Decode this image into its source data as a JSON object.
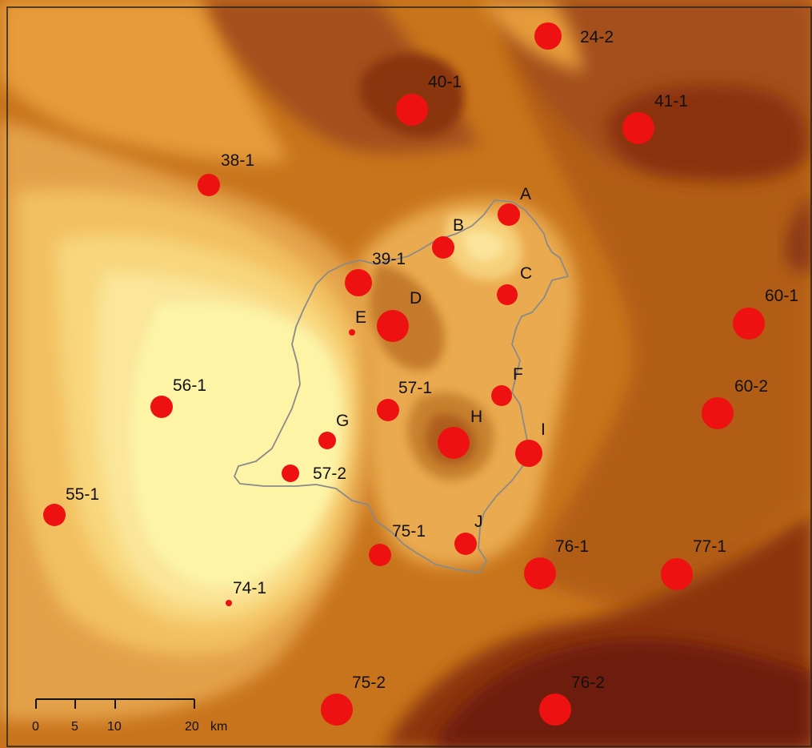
{
  "map": {
    "colors": {
      "background_light": "#fdf4a6",
      "marker": "#ee1111",
      "boundary": "#8a8a8a",
      "text": "#111111"
    },
    "stations": [
      {
        "id": "24-2"
      },
      {
        "id": "40-1"
      },
      {
        "id": "41-1"
      },
      {
        "id": "38-1"
      },
      {
        "id": "A"
      },
      {
        "id": "B"
      },
      {
        "id": "39-1"
      },
      {
        "id": "C"
      },
      {
        "id": "D"
      },
      {
        "id": "E"
      },
      {
        "id": "60-1"
      },
      {
        "id": "56-1"
      },
      {
        "id": "57-1"
      },
      {
        "id": "F"
      },
      {
        "id": "60-2"
      },
      {
        "id": "G"
      },
      {
        "id": "H"
      },
      {
        "id": "I"
      },
      {
        "id": "57-2"
      },
      {
        "id": "55-1"
      },
      {
        "id": "J"
      },
      {
        "id": "75-1"
      },
      {
        "id": "76-1"
      },
      {
        "id": "77-1"
      },
      {
        "id": "74-1"
      },
      {
        "id": "75-2"
      },
      {
        "id": "76-2"
      }
    ],
    "scale_bar": {
      "ticks": [
        "0",
        "5",
        "10",
        "20"
      ],
      "unit": "km"
    }
  }
}
